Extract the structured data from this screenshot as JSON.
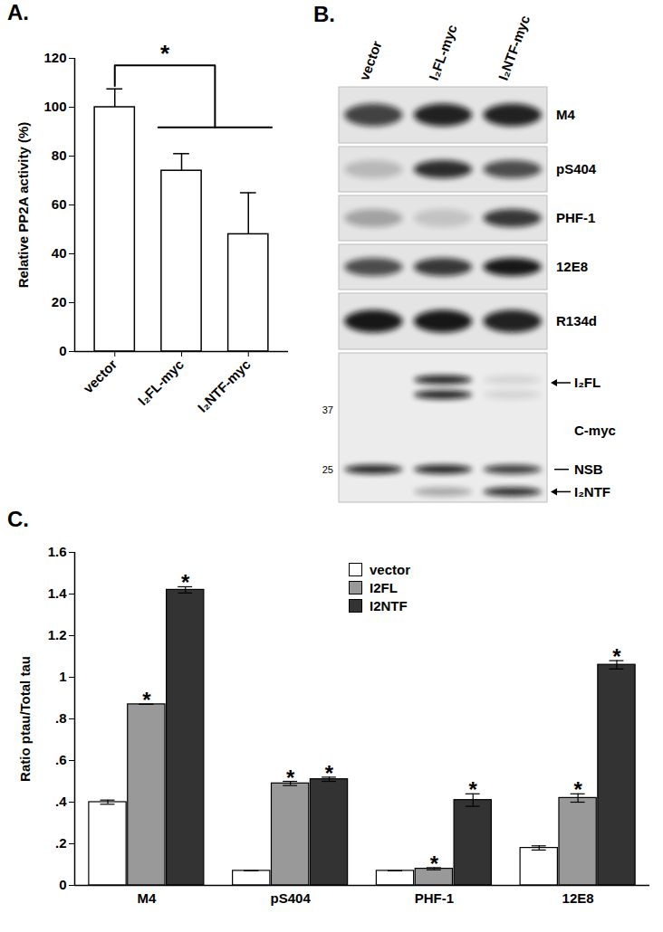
{
  "chart_data": [
    {
      "type": "bar",
      "title": "A.",
      "categories": [
        "vector",
        "I₂FL-myc",
        "I₂NTF-myc"
      ],
      "values": [
        100,
        74,
        48
      ],
      "errors": [
        7.5,
        7,
        17
      ],
      "color": "#ffffff",
      "ylabel": "Relative PP2A activity (%)",
      "ylim": [
        0,
        120
      ],
      "yticks": [
        0,
        20,
        40,
        60,
        80,
        100,
        120
      ],
      "annotations": [
        {
          "text": "*",
          "from": "vector",
          "to": [
            "I₂FL-myc",
            "I₂NTF-myc"
          ]
        }
      ]
    },
    {
      "type": "bar",
      "title": "C.",
      "categories": [
        "M4",
        "pS404",
        "PHF-1",
        "12E8"
      ],
      "series": [
        {
          "name": "vector",
          "color": "#ffffff",
          "values": [
            0.4,
            0.07,
            0.07,
            0.18
          ],
          "errors": [
            0.01,
            0,
            0,
            0.01
          ],
          "annotations": [
            null,
            null,
            null,
            null
          ]
        },
        {
          "name": "I2FL",
          "color": "#999999",
          "values": [
            0.87,
            0.49,
            0.08,
            0.42
          ],
          "errors": [
            0,
            0.01,
            0.005,
            0.02
          ],
          "annotations": [
            "*",
            "*",
            "*",
            "*"
          ]
        },
        {
          "name": "I2NTF",
          "color": "#333333",
          "values": [
            1.42,
            0.51,
            0.41,
            1.06
          ],
          "errors": [
            0.015,
            0.01,
            0.03,
            0.02
          ],
          "annotations": [
            "*",
            "*",
            "*",
            "*"
          ]
        }
      ],
      "ylabel": "Ratio ptau/Total tau",
      "ylim": [
        0,
        1.6
      ],
      "yticks": [
        0,
        {
          "value": 0.2,
          "label": ".2"
        },
        {
          "value": 0.4,
          "label": ".4"
        },
        {
          "value": 0.6,
          "label": ".6"
        },
        {
          "value": 0.8,
          "label": ".8"
        },
        1,
        1.2,
        1.4,
        1.6
      ],
      "legend": "top"
    }
  ],
  "blot": {
    "title": "B.",
    "lanes": [
      "vector",
      "I₂FL-myc",
      "I₂NTF-myc"
    ],
    "rows": [
      {
        "label": "M4",
        "intensity": [
          0.75,
          0.9,
          0.9
        ]
      },
      {
        "label": "pS404",
        "intensity": [
          0.2,
          0.85,
          0.7
        ]
      },
      {
        "label": "PHF-1",
        "intensity": [
          0.3,
          0.15,
          0.8
        ]
      },
      {
        "label": "12E8",
        "intensity": [
          0.7,
          0.8,
          0.95
        ]
      },
      {
        "label": "R134d",
        "intensity": [
          0.95,
          0.95,
          0.9
        ]
      }
    ],
    "cmyc": {
      "label": "C-myc",
      "markers": [
        37,
        25
      ],
      "bands": [
        {
          "label": "I₂FL",
          "intensity": [
            0,
            0.9,
            0.1
          ]
        },
        {
          "label": "NSB",
          "intensity": [
            0.9,
            0.9,
            0.8
          ]
        },
        {
          "label": "I₂NTF",
          "intensity": [
            0,
            0.3,
            0.85
          ]
        }
      ]
    }
  }
}
